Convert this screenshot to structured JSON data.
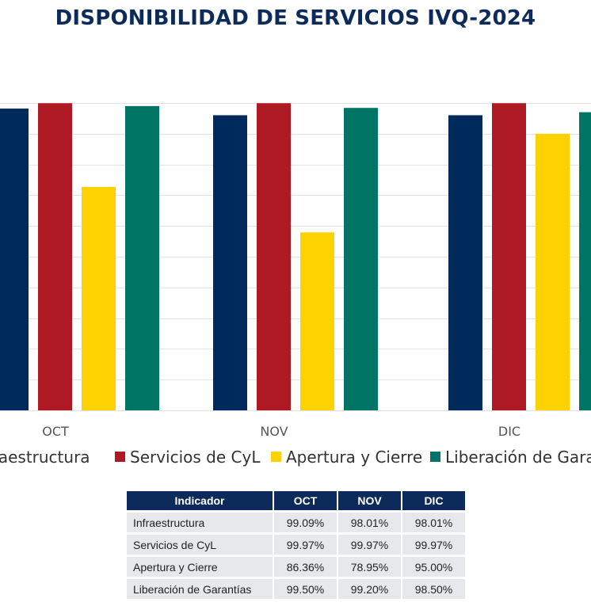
{
  "chart_data": {
    "type": "bar",
    "title": "DISPONIBILIDAD DE SERVICIOS IVQ-2024",
    "categories": [
      "OCT",
      "NOV",
      "DIC"
    ],
    "series": [
      {
        "name": "Infraestructura",
        "color": "#002a5c",
        "values": [
          99.09,
          98.01,
          98.01
        ]
      },
      {
        "name": "Servicios de CyL",
        "color": "#ad1a24",
        "values": [
          99.97,
          99.97,
          99.97
        ]
      },
      {
        "name": "Apertura y Cierre",
        "color": "#fed100",
        "values": [
          86.36,
          78.95,
          95.0
        ]
      },
      {
        "name": "Liberación de Garantías",
        "color": "#007565",
        "values": [
          99.5,
          99.2,
          98.5
        ]
      }
    ],
    "ylim": [
      50,
      100
    ],
    "grid": true,
    "legend_position": "bottom"
  },
  "table": {
    "headers": [
      "Indicador",
      "OCT",
      "NOV",
      "DIC"
    ],
    "rows": [
      {
        "name": "Infraestructura",
        "values": [
          "99.09%",
          "98.01%",
          "98.01%"
        ]
      },
      {
        "name": "Servicios de CyL",
        "values": [
          "99.97%",
          "99.97%",
          "99.97%"
        ]
      },
      {
        "name": "Apertura y Cierre",
        "values": [
          "86.36%",
          "78.95%",
          "95.00%"
        ]
      },
      {
        "name": "Liberación de Garantías",
        "values": [
          "99.50%",
          "99.20%",
          "98.50%"
        ]
      }
    ]
  }
}
